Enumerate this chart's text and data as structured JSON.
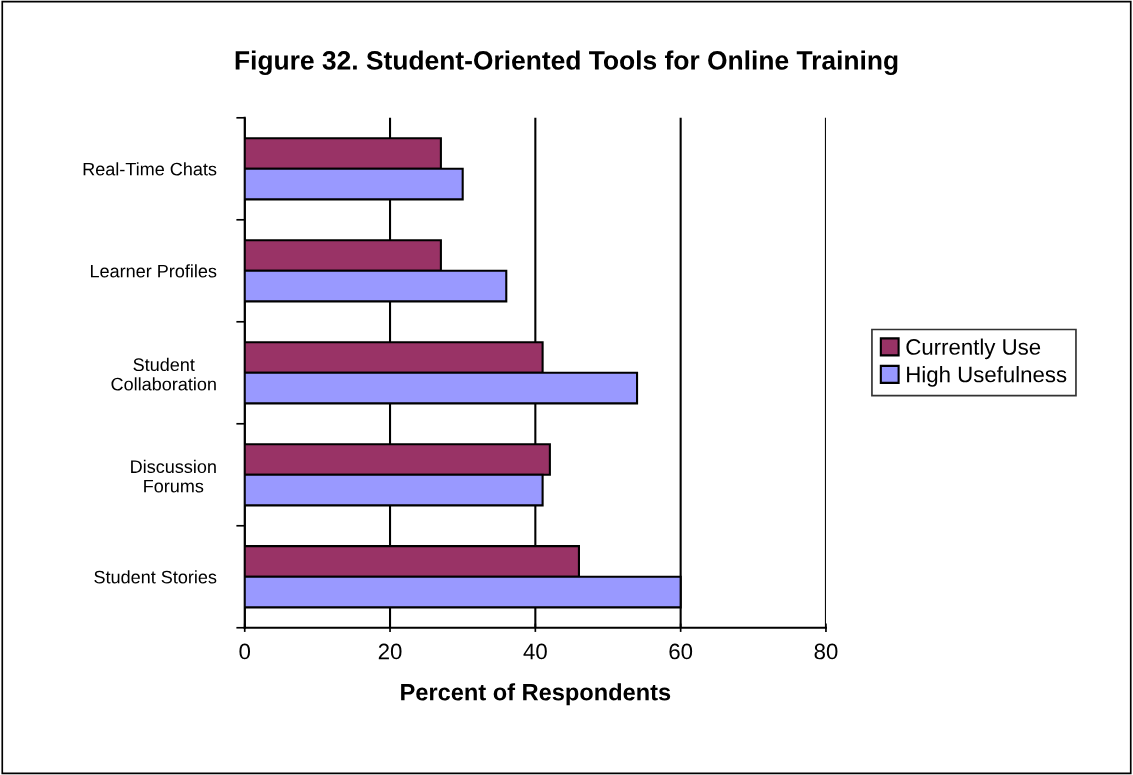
{
  "chart_data": {
    "type": "bar",
    "orientation": "horizontal",
    "title": "Figure 32. Student-Oriented Tools for Online Training",
    "xlabel": "Percent of Respondents",
    "categories": [
      "Real-Time Chats",
      "Learner Profiles",
      "Student\nCollaboration",
      "Discussion\nForums",
      "Student Stories"
    ],
    "series": [
      {
        "name": "Currently Use",
        "color": "#993366",
        "values": [
          27,
          27,
          41,
          42,
          46
        ]
      },
      {
        "name": "High Usefulness",
        "color": "#9999ff",
        "values": [
          30,
          36,
          54,
          41,
          60
        ]
      }
    ],
    "xlim": [
      0,
      80
    ],
    "xticks": [
      0,
      20,
      40,
      60,
      80
    ],
    "grid": "x",
    "legend": "right"
  }
}
